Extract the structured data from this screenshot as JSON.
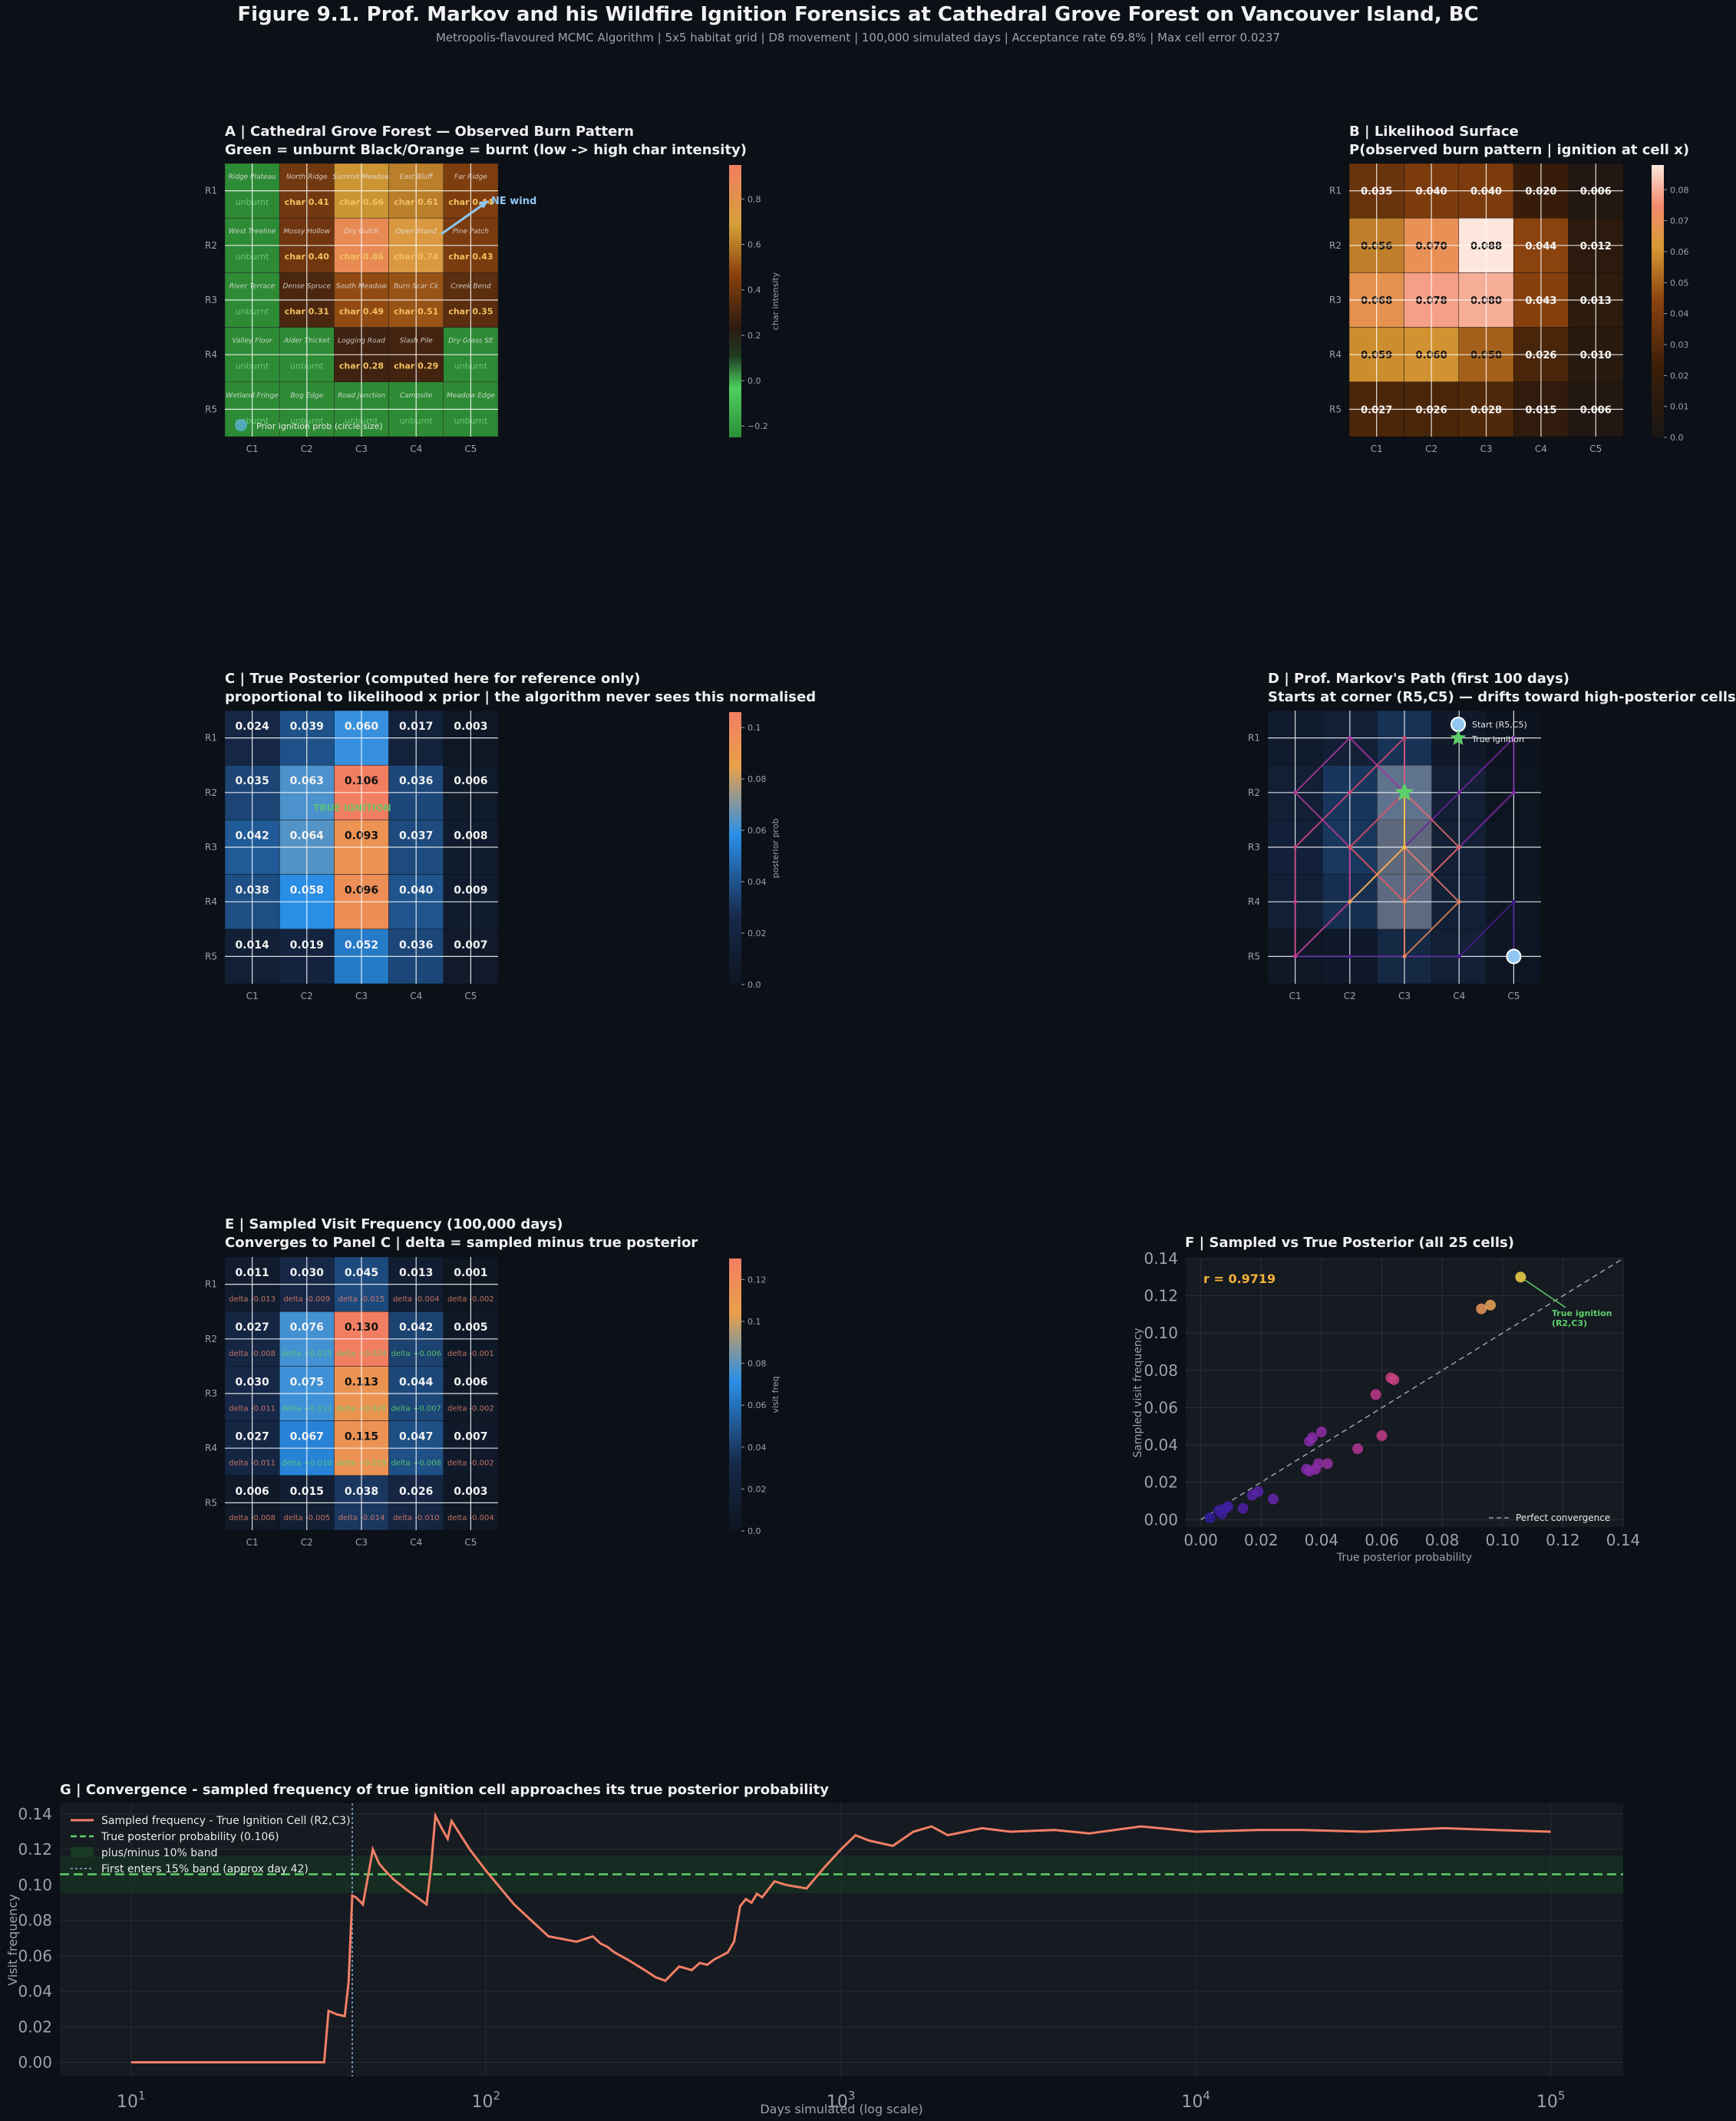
{
  "figure": {
    "title": "Figure 9.1. Prof. Markov and his Wildfire Ignition Forensics at Cathedral Grove Forest on Vancouver Island, BC",
    "subtitle": "Metropolis-flavoured MCMC Algorithm  |  5x5 habitat grid  |  D8 movement  |  100,000 simulated days  |  Acceptance rate 69.8%  |  Max cell error 0.0237"
  },
  "panels": {
    "a": {
      "line1": "A  |  Cathedral Grove Forest  —  Observed Burn Pattern",
      "line2": "Green = unburnt    Black/Orange = burnt  (low -> high char intensity)"
    },
    "b": {
      "line1": "B  |  Likelihood Surface",
      "line2": "P(observed burn pattern | ignition at cell x)"
    },
    "c": {
      "line1": "C  |  True Posterior  (computed here for reference only)",
      "line2": "proportional to likelihood x prior  |  the algorithm never sees this normalised"
    },
    "d": {
      "line1": "D  |  Prof. Markov's Path  (first 100 days)",
      "line2": "Starts at corner (R5,C5)  —  drifts toward high-posterior cells"
    },
    "e": {
      "line1": "E  |  Sampled Visit Frequency  (100,000 days)",
      "line2": "Converges to Panel C  |  delta = sampled minus true posterior"
    },
    "f": {
      "line1": "F  |  Sampled vs True Posterior  (all 25 cells)"
    },
    "g": {
      "line1": "G  |  Convergence  -  sampled frequency of true ignition cell approaches its true posterior probability"
    }
  },
  "chart_data": [
    {
      "id": "A",
      "type": "heatmap",
      "rows": [
        "R1",
        "R2",
        "R3",
        "R4",
        "R5"
      ],
      "cols": [
        "C1",
        "C2",
        "C3",
        "C4",
        "C5"
      ],
      "names": [
        [
          "Ridge Plateau",
          "North Ridge",
          "Summit Meadow",
          "East Bluff",
          "Far Ridge"
        ],
        [
          "West Treeline",
          "Mossy Hollow",
          "Dry Gulch",
          "Open Stand",
          "Pine Patch"
        ],
        [
          "River Terrace",
          "Dense Spruce",
          "South Meadow",
          "Burn Scar Ck",
          "Creek Bend"
        ],
        [
          "Valley Floor",
          "Alder Thicket",
          "Logging Road",
          "Slash Pile",
          "Dry Grass SE"
        ],
        [
          "Wetland Fringe",
          "Bog Edge",
          "Road Junction",
          "Campsite",
          "Meadow Edge"
        ]
      ],
      "char": [
        [
          null,
          0.41,
          0.66,
          0.61,
          0.44
        ],
        [
          null,
          0.4,
          0.86,
          0.74,
          0.43
        ],
        [
          null,
          0.31,
          0.49,
          0.51,
          0.35
        ],
        [
          null,
          null,
          0.28,
          0.29,
          null
        ],
        [
          null,
          null,
          null,
          null,
          null
        ]
      ],
      "value_prefix": "char",
      "unburnt_label": "unburnt",
      "colorbar": {
        "label": "char intensity",
        "ticks": [
          -0.2,
          0.0,
          0.2,
          0.4,
          0.6,
          0.8
        ],
        "range": [
          -0.25,
          0.95
        ]
      },
      "wind_label": "NE wind",
      "legend": "Prior ignition prob (circle size)",
      "colors": {
        "unburnt": "#2e8b35",
        "burnt_low": "#2a1a0a",
        "burnt_high": "#f07a55"
      }
    },
    {
      "id": "B",
      "type": "heatmap",
      "rows": [
        "R1",
        "R2",
        "R3",
        "R4",
        "R5"
      ],
      "cols": [
        "C1",
        "C2",
        "C3",
        "C4",
        "C5"
      ],
      "values": [
        [
          0.035,
          0.04,
          0.04,
          0.02,
          0.006
        ],
        [
          0.056,
          0.07,
          0.088,
          0.044,
          0.012
        ],
        [
          0.068,
          0.078,
          0.08,
          0.043,
          0.013
        ],
        [
          0.059,
          0.06,
          0.05,
          0.026,
          0.01
        ],
        [
          0.027,
          0.026,
          0.028,
          0.015,
          0.006
        ]
      ],
      "colorbar": {
        "ticks": [
          0.0,
          0.01,
          0.02,
          0.03,
          0.04,
          0.05,
          0.06,
          0.07,
          0.08
        ],
        "range": [
          0,
          0.088
        ]
      }
    },
    {
      "id": "C",
      "type": "heatmap",
      "rows": [
        "R1",
        "R2",
        "R3",
        "R4",
        "R5"
      ],
      "cols": [
        "C1",
        "C2",
        "C3",
        "C4",
        "C5"
      ],
      "values": [
        [
          0.024,
          0.039,
          0.06,
          0.017,
          0.003
        ],
        [
          0.035,
          0.063,
          0.106,
          0.036,
          0.006
        ],
        [
          0.042,
          0.064,
          0.093,
          0.037,
          0.008
        ],
        [
          0.038,
          0.058,
          0.096,
          0.04,
          0.009
        ],
        [
          0.014,
          0.019,
          0.052,
          0.036,
          0.007
        ]
      ],
      "annotation": "TRUE IGNITION",
      "colorbar": {
        "label": "posterior prob",
        "ticks": [
          0.0,
          0.02,
          0.04,
          0.06,
          0.08,
          0.1
        ],
        "range": [
          0,
          0.106
        ]
      }
    },
    {
      "id": "D",
      "type": "line",
      "rows": [
        "R1",
        "R2",
        "R3",
        "R4",
        "R5"
      ],
      "cols": [
        "C1",
        "C2",
        "C3",
        "C4",
        "C5"
      ],
      "legend": [
        "Start (R5,C5)",
        "True ignition"
      ],
      "start": [
        5,
        5
      ],
      "ignition": [
        2,
        3
      ],
      "path": [
        [
          5,
          5
        ],
        [
          4,
          5
        ],
        [
          5,
          4
        ],
        [
          5,
          3
        ],
        [
          5,
          2
        ],
        [
          5,
          1
        ],
        [
          4,
          2
        ],
        [
          3,
          3
        ],
        [
          2,
          4
        ],
        [
          1,
          5
        ],
        [
          2,
          5
        ],
        [
          3,
          4
        ],
        [
          4,
          3
        ],
        [
          5,
          3
        ],
        [
          4,
          3
        ],
        [
          3,
          3
        ],
        [
          2,
          3
        ],
        [
          1,
          2
        ],
        [
          2,
          1
        ],
        [
          3,
          2
        ],
        [
          4,
          2
        ],
        [
          5,
          1
        ],
        [
          4,
          1
        ],
        [
          3,
          1
        ],
        [
          2,
          2
        ],
        [
          1,
          3
        ],
        [
          2,
          3
        ],
        [
          3,
          2
        ],
        [
          4,
          3
        ],
        [
          3,
          4
        ],
        [
          2,
          3
        ],
        [
          3,
          3
        ],
        [
          4,
          4
        ],
        [
          5,
          3
        ],
        [
          4,
          3
        ],
        [
          3,
          3
        ],
        [
          4,
          2
        ],
        [
          3,
          3
        ],
        [
          2,
          3
        ],
        [
          3,
          3
        ]
      ]
    },
    {
      "id": "E",
      "type": "heatmap",
      "rows": [
        "R1",
        "R2",
        "R3",
        "R4",
        "R5"
      ],
      "cols": [
        "C1",
        "C2",
        "C3",
        "C4",
        "C5"
      ],
      "values": [
        [
          0.011,
          0.03,
          0.045,
          0.013,
          0.001
        ],
        [
          0.027,
          0.076,
          0.13,
          0.042,
          0.005
        ],
        [
          0.03,
          0.075,
          0.113,
          0.044,
          0.006
        ],
        [
          0.027,
          0.067,
          0.115,
          0.047,
          0.007
        ],
        [
          0.006,
          0.015,
          0.038,
          0.026,
          0.003
        ]
      ],
      "deltas": [
        [
          "-0.013",
          "-0.009",
          "-0.015",
          "-0.004",
          "-0.002"
        ],
        [
          "-0.008",
          "+0.013",
          "+0.024",
          "+0.006",
          "-0.001"
        ],
        [
          "-0.011",
          "+0.012",
          "+0.020",
          "+0.007",
          "-0.002"
        ],
        [
          "-0.011",
          "+0.010",
          "+0.019",
          "+0.008",
          "-0.002"
        ],
        [
          "-0.008",
          "-0.005",
          "-0.014",
          "-0.010",
          "-0.004"
        ]
      ],
      "delta_prefix": "delta",
      "colorbar": {
        "label": "visit freq",
        "ticks": [
          0.0,
          0.02,
          0.04,
          0.06,
          0.08,
          0.1,
          0.12
        ],
        "range": [
          0,
          0.13
        ]
      }
    },
    {
      "id": "F",
      "type": "scatter",
      "xlabel": "True posterior probability",
      "ylabel": "Sampled visit frequency",
      "xlim": [
        -0.005,
        0.14
      ],
      "ylim": [
        -0.004,
        0.14
      ],
      "xticks": [
        0.0,
        0.02,
        0.04,
        0.06,
        0.08,
        0.1,
        0.12,
        0.14
      ],
      "yticks": [
        0.0,
        0.02,
        0.04,
        0.06,
        0.08,
        0.1,
        0.12,
        0.14
      ],
      "r_label": "r = 0.9719",
      "annotation": "True ignition\n(R2,C3)",
      "legend": "Perfect convergence",
      "points": [
        [
          0.024,
          0.011
        ],
        [
          0.039,
          0.03
        ],
        [
          0.06,
          0.045
        ],
        [
          0.017,
          0.013
        ],
        [
          0.003,
          0.001
        ],
        [
          0.035,
          0.027
        ],
        [
          0.063,
          0.076
        ],
        [
          0.106,
          0.13
        ],
        [
          0.036,
          0.042
        ],
        [
          0.006,
          0.005
        ],
        [
          0.042,
          0.03
        ],
        [
          0.064,
          0.075
        ],
        [
          0.093,
          0.113
        ],
        [
          0.037,
          0.044
        ],
        [
          0.008,
          0.006
        ],
        [
          0.038,
          0.027
        ],
        [
          0.058,
          0.067
        ],
        [
          0.096,
          0.115
        ],
        [
          0.04,
          0.047
        ],
        [
          0.009,
          0.007
        ],
        [
          0.014,
          0.006
        ],
        [
          0.019,
          0.015
        ],
        [
          0.052,
          0.038
        ],
        [
          0.036,
          0.026
        ],
        [
          0.007,
          0.003
        ]
      ]
    },
    {
      "id": "G",
      "type": "line",
      "xscale": "log",
      "xlabel": "Days simulated  (log scale)",
      "ylabel": "Visit frequency",
      "xlim": [
        6.3,
        160000
      ],
      "ylim": [
        -0.008,
        0.146
      ],
      "yticks": [
        0.0,
        0.02,
        0.04,
        0.06,
        0.08,
        0.1,
        0.12,
        0.14
      ],
      "xticks": [
        {
          "base": "10",
          "exp": "1",
          "value": 10
        },
        {
          "base": "10",
          "exp": "2",
          "value": 100
        },
        {
          "base": "10",
          "exp": "3",
          "value": 1000
        },
        {
          "base": "10",
          "exp": "4",
          "value": 10000
        },
        {
          "base": "10",
          "exp": "5",
          "value": 100000
        }
      ],
      "true_posterior": 0.106,
      "band": [
        0.0954,
        0.1166
      ],
      "first_entry_day": 42,
      "legend": [
        "Sampled frequency  -  True Ignition Cell (R2,C3)",
        "True posterior probability  (0.106)",
        "plus/minus 10% band",
        "First enters 15% band  (approx day 42)"
      ],
      "series": {
        "x": [
          10,
          20,
          35,
          36,
          37,
          38,
          40,
          41,
          42,
          43,
          44,
          45,
          48,
          50,
          52,
          55,
          60,
          65,
          68,
          70,
          72,
          75,
          78,
          80,
          90,
          100,
          120,
          150,
          180,
          200,
          210,
          220,
          230,
          250,
          280,
          300,
          320,
          350,
          380,
          400,
          420,
          440,
          460,
          480,
          500,
          520,
          540,
          560,
          580,
          600,
          650,
          700,
          800,
          900,
          1000,
          1100,
          1200,
          1400,
          1600,
          1800,
          2000,
          2500,
          3000,
          4000,
          5000,
          7000,
          10000,
          15000,
          20000,
          30000,
          50000,
          70000,
          100000
        ],
        "y": [
          0.0,
          0.0,
          0.0,
          0.029,
          0.028,
          0.027,
          0.026,
          0.045,
          0.094,
          0.093,
          0.091,
          0.089,
          0.12,
          0.112,
          0.108,
          0.103,
          0.097,
          0.092,
          0.089,
          0.11,
          0.139,
          0.132,
          0.126,
          0.136,
          0.12,
          0.108,
          0.089,
          0.071,
          0.068,
          0.071,
          0.067,
          0.065,
          0.062,
          0.058,
          0.052,
          0.048,
          0.046,
          0.054,
          0.052,
          0.056,
          0.055,
          0.058,
          0.06,
          0.062,
          0.068,
          0.088,
          0.092,
          0.09,
          0.095,
          0.093,
          0.102,
          0.1,
          0.098,
          0.11,
          0.12,
          0.128,
          0.125,
          0.122,
          0.13,
          0.133,
          0.128,
          0.132,
          0.13,
          0.131,
          0.129,
          0.133,
          0.13,
          0.131,
          0.131,
          0.13,
          0.132,
          0.131,
          0.13
        ]
      },
      "colors": {
        "line": "#f07f66",
        "true": "#5ecf6a",
        "band": "#183a22",
        "vline": "#8ab4d8"
      }
    }
  ]
}
